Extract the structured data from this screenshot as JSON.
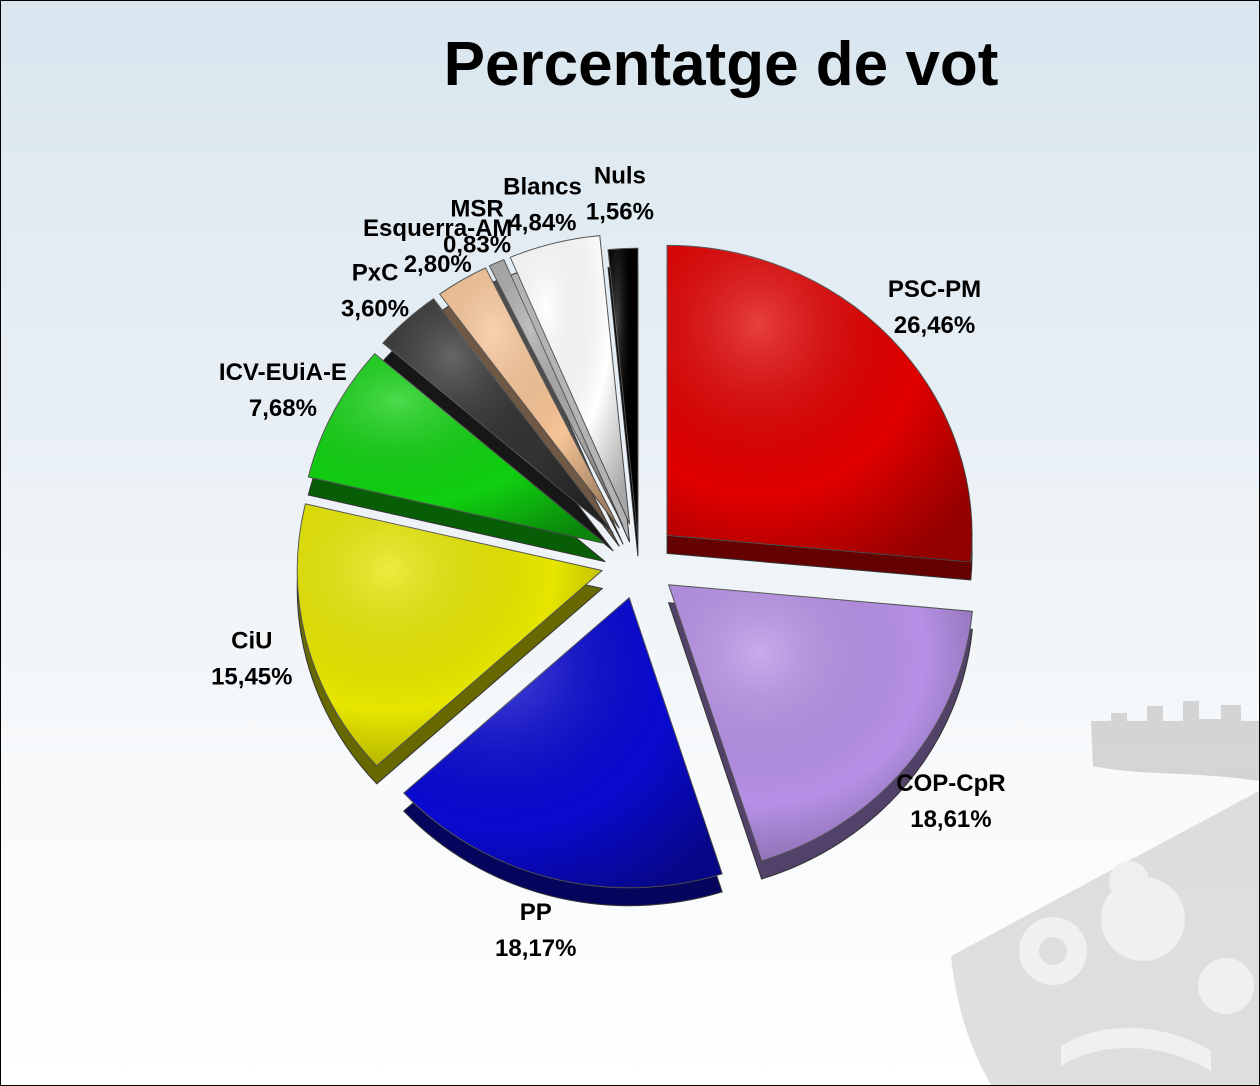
{
  "chart_data": {
    "type": "pie",
    "title": "Percentatge de vot",
    "slices": [
      {
        "name": "PSC-PM",
        "value": 26.46,
        "display": "26,46%",
        "color": "#e00000"
      },
      {
        "name": "COP-CpR",
        "value": 18.61,
        "display": "18,61%",
        "color": "#b690e6"
      },
      {
        "name": "PP",
        "value": 18.17,
        "display": "18,17%",
        "color": "#0a0ad0"
      },
      {
        "name": "CiU",
        "value": 15.45,
        "display": "15,45%",
        "color": "#e6e600"
      },
      {
        "name": "ICV-EUiA-E",
        "value": 7.68,
        "display": "7,68%",
        "color": "#10d010"
      },
      {
        "name": "PxC",
        "value": 3.6,
        "display": "3,60%",
        "color": "#333333"
      },
      {
        "name": "Esquerra-AM",
        "value": 2.8,
        "display": "2,80%",
        "color": "#f6c496"
      },
      {
        "name": "MSR",
        "value": 0.83,
        "display": "0,83%",
        "color": "#aaaaaa"
      },
      {
        "name": "Blancs",
        "value": 4.84,
        "display": "4,84%",
        "color": "#ffffff"
      },
      {
        "name": "Nuls",
        "value": 1.56,
        "display": "1,56%",
        "color": "#000000"
      }
    ]
  }
}
